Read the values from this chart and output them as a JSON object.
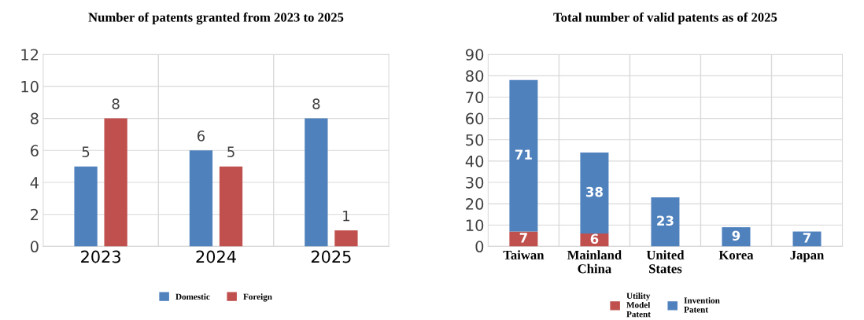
{
  "chart_data": [
    {
      "type": "bar",
      "title": "Number of patents granted from 2023 to 2025",
      "categories": [
        "2023",
        "2024",
        "2025"
      ],
      "series": [
        {
          "name": "Domestic",
          "color": "#4f81bd",
          "values": [
            5,
            6,
            8
          ]
        },
        {
          "name": "Foreign",
          "color": "#c0504d",
          "values": [
            8,
            5,
            1
          ]
        }
      ],
      "ylim": [
        0,
        12
      ],
      "yticks": [
        0,
        2,
        4,
        6,
        8,
        10,
        12
      ],
      "grid": true,
      "legend": "bottom",
      "data_labels": true
    },
    {
      "type": "bar",
      "title": "Total number of valid patents as of 2025",
      "categories": [
        "Taiwan",
        "Mainland\nChina",
        "United\nStates",
        "Korea",
        "Japan"
      ],
      "stacked": true,
      "series": [
        {
          "name": "Utility\nModel\nPatent",
          "color": "#c0504d",
          "values": [
            7,
            6,
            null,
            null,
            null
          ]
        },
        {
          "name": "Invention\nPatent",
          "color": "#4f81bd",
          "values": [
            71,
            38,
            23,
            9,
            7
          ]
        }
      ],
      "ylim": [
        0,
        90
      ],
      "yticks": [
        0,
        10,
        20,
        30,
        40,
        50,
        60,
        70,
        80,
        90
      ],
      "grid": true,
      "legend": "bottom",
      "data_labels": true
    }
  ]
}
